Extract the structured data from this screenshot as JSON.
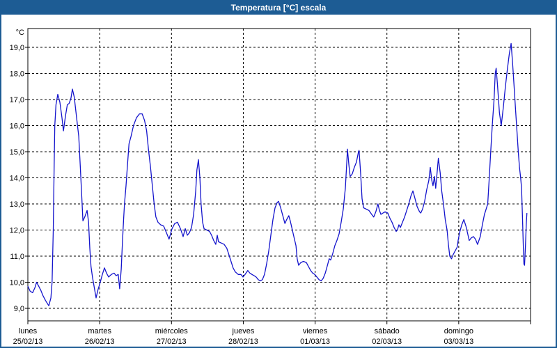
{
  "window": {
    "title": "Temperatura [°C] escala"
  },
  "colors": {
    "title_bar": "#1d5c94",
    "window_border": "#1d5c94",
    "line": "#1414cc",
    "grid": "#000000",
    "background": "#ffffff"
  },
  "chart_data": {
    "type": "line",
    "title": "Temperatura [°C] escala",
    "unit_label": "°C",
    "xlabel": "",
    "ylabel": "°C",
    "ylim": [
      8.5,
      19.7
    ],
    "grid": true,
    "legend_position": "none",
    "x_hours_total": 168,
    "y_ticks": [
      {
        "label": "19,0",
        "value": 19
      },
      {
        "label": "18,0",
        "value": 18
      },
      {
        "label": "17,0",
        "value": 17
      },
      {
        "label": "16,0",
        "value": 16
      },
      {
        "label": "15,0",
        "value": 15
      },
      {
        "label": "14,0",
        "value": 14
      },
      {
        "label": "13,0",
        "value": 13
      },
      {
        "label": "12,0",
        "value": 12
      },
      {
        "label": "11,0",
        "value": 11
      },
      {
        "label": "10,0",
        "value": 10
      },
      {
        "label": "9,0",
        "value": 9
      }
    ],
    "x_days": [
      {
        "name": "lunes",
        "date": "25/02/13"
      },
      {
        "name": "martes",
        "date": "26/02/13"
      },
      {
        "name": "miércoles",
        "date": "27/02/13"
      },
      {
        "name": "jueves",
        "date": "28/02/13"
      },
      {
        "name": "viernes",
        "date": "01/03/13"
      },
      {
        "name": "sábado",
        "date": "02/03/13"
      },
      {
        "name": "domingo",
        "date": "03/03/13"
      }
    ],
    "series": [
      {
        "name": "Temperatura",
        "points": [
          [
            0.0,
            9.85
          ],
          [
            0.8,
            9.65
          ],
          [
            1.6,
            9.6
          ],
          [
            2.4,
            9.8
          ],
          [
            2.9,
            10.0
          ],
          [
            3.6,
            9.85
          ],
          [
            4.3,
            9.7
          ],
          [
            5.0,
            9.5
          ],
          [
            5.9,
            9.3
          ],
          [
            7.0,
            9.1
          ],
          [
            7.7,
            9.4
          ],
          [
            8.1,
            10.0
          ],
          [
            8.5,
            12.0
          ],
          [
            8.8,
            14.5
          ],
          [
            9.0,
            16.0
          ],
          [
            9.4,
            16.8
          ],
          [
            10.0,
            17.2
          ],
          [
            10.7,
            16.9
          ],
          [
            11.4,
            16.3
          ],
          [
            11.9,
            15.8
          ],
          [
            12.6,
            16.4
          ],
          [
            13.2,
            16.8
          ],
          [
            13.8,
            16.85
          ],
          [
            14.4,
            17.05
          ],
          [
            14.9,
            17.4
          ],
          [
            15.5,
            17.1
          ],
          [
            16.1,
            16.5
          ],
          [
            16.6,
            16.0
          ],
          [
            17.0,
            15.6
          ],
          [
            17.5,
            14.5
          ],
          [
            18.0,
            13.3
          ],
          [
            18.4,
            12.35
          ],
          [
            19.0,
            12.5
          ],
          [
            19.8,
            12.75
          ],
          [
            20.3,
            12.3
          ],
          [
            20.7,
            11.3
          ],
          [
            21.1,
            10.6
          ],
          [
            21.6,
            10.2
          ],
          [
            22.2,
            9.8
          ],
          [
            22.8,
            9.4
          ],
          [
            23.4,
            9.7
          ],
          [
            24.2,
            10.0
          ],
          [
            24.9,
            10.3
          ],
          [
            25.6,
            10.55
          ],
          [
            26.3,
            10.35
          ],
          [
            27.0,
            10.2
          ],
          [
            27.9,
            10.3
          ],
          [
            28.8,
            10.35
          ],
          [
            29.5,
            10.25
          ],
          [
            30.2,
            10.3
          ],
          [
            30.7,
            9.75
          ],
          [
            31.2,
            10.5
          ],
          [
            31.6,
            11.5
          ],
          [
            32.0,
            12.4
          ],
          [
            32.3,
            13.0
          ],
          [
            32.8,
            13.7
          ],
          [
            33.3,
            14.5
          ],
          [
            33.8,
            15.3
          ],
          [
            34.5,
            15.6
          ],
          [
            35.3,
            16.0
          ],
          [
            36.3,
            16.3
          ],
          [
            37.3,
            16.45
          ],
          [
            38.2,
            16.45
          ],
          [
            39.0,
            16.2
          ],
          [
            39.7,
            15.8
          ],
          [
            40.3,
            15.1
          ],
          [
            41.0,
            14.4
          ],
          [
            41.6,
            13.7
          ],
          [
            42.2,
            13.0
          ],
          [
            42.8,
            12.5
          ],
          [
            43.5,
            12.3
          ],
          [
            44.4,
            12.2
          ],
          [
            45.4,
            12.15
          ],
          [
            46.3,
            11.9
          ],
          [
            47.2,
            11.65
          ],
          [
            48.2,
            12.05
          ],
          [
            49.1,
            12.25
          ],
          [
            50.0,
            12.3
          ],
          [
            51.0,
            12.05
          ],
          [
            51.9,
            11.75
          ],
          [
            52.6,
            12.05
          ],
          [
            53.3,
            11.8
          ],
          [
            54.0,
            11.9
          ],
          [
            54.7,
            12.1
          ],
          [
            55.4,
            12.6
          ],
          [
            56.1,
            13.5
          ],
          [
            56.5,
            14.3
          ],
          [
            57.0,
            14.7
          ],
          [
            57.5,
            14.0
          ],
          [
            57.9,
            13.0
          ],
          [
            58.4,
            12.3
          ],
          [
            58.9,
            12.05
          ],
          [
            59.8,
            12.0
          ],
          [
            60.7,
            11.95
          ],
          [
            61.4,
            11.8
          ],
          [
            62.1,
            11.6
          ],
          [
            62.8,
            11.45
          ],
          [
            63.3,
            11.8
          ],
          [
            63.7,
            11.55
          ],
          [
            64.7,
            11.5
          ],
          [
            65.6,
            11.45
          ],
          [
            66.5,
            11.3
          ],
          [
            67.2,
            11.05
          ],
          [
            67.9,
            10.8
          ],
          [
            68.6,
            10.55
          ],
          [
            69.3,
            10.4
          ],
          [
            70.3,
            10.3
          ],
          [
            71.2,
            10.3
          ],
          [
            71.9,
            10.2
          ],
          [
            72.6,
            10.3
          ],
          [
            73.5,
            10.45
          ],
          [
            74.2,
            10.35
          ],
          [
            74.9,
            10.3
          ],
          [
            75.6,
            10.25
          ],
          [
            76.3,
            10.2
          ],
          [
            77.0,
            10.1
          ],
          [
            77.7,
            10.05
          ],
          [
            78.4,
            10.1
          ],
          [
            79.1,
            10.3
          ],
          [
            79.8,
            10.7
          ],
          [
            80.5,
            11.2
          ],
          [
            81.2,
            11.8
          ],
          [
            81.9,
            12.4
          ],
          [
            82.6,
            12.85
          ],
          [
            83.3,
            13.05
          ],
          [
            83.8,
            13.1
          ],
          [
            84.5,
            12.85
          ],
          [
            85.2,
            12.55
          ],
          [
            85.9,
            12.25
          ],
          [
            86.5,
            12.4
          ],
          [
            87.2,
            12.55
          ],
          [
            87.7,
            12.35
          ],
          [
            88.4,
            12.0
          ],
          [
            89.1,
            11.65
          ],
          [
            89.6,
            11.4
          ],
          [
            90.0,
            10.9
          ],
          [
            90.5,
            10.65
          ],
          [
            91.2,
            10.75
          ],
          [
            92.1,
            10.8
          ],
          [
            93.1,
            10.75
          ],
          [
            93.8,
            10.6
          ],
          [
            94.5,
            10.45
          ],
          [
            95.2,
            10.35
          ],
          [
            95.9,
            10.3
          ],
          [
            96.6,
            10.2
          ],
          [
            97.3,
            10.1
          ],
          [
            98.0,
            10.05
          ],
          [
            98.7,
            10.15
          ],
          [
            99.4,
            10.35
          ],
          [
            100.0,
            10.6
          ],
          [
            100.7,
            10.9
          ],
          [
            101.2,
            10.85
          ],
          [
            101.9,
            11.1
          ],
          [
            102.6,
            11.4
          ],
          [
            103.3,
            11.6
          ],
          [
            104.0,
            11.85
          ],
          [
            104.7,
            12.3
          ],
          [
            105.4,
            12.8
          ],
          [
            106.1,
            13.6
          ],
          [
            106.6,
            14.6
          ],
          [
            106.8,
            15.1
          ],
          [
            107.3,
            14.5
          ],
          [
            107.7,
            14.05
          ],
          [
            108.4,
            14.15
          ],
          [
            109.1,
            14.4
          ],
          [
            109.8,
            14.6
          ],
          [
            110.5,
            15.0
          ],
          [
            110.7,
            15.05
          ],
          [
            111.2,
            14.2
          ],
          [
            111.7,
            13.2
          ],
          [
            112.2,
            12.85
          ],
          [
            113.1,
            12.8
          ],
          [
            114.0,
            12.75
          ],
          [
            114.9,
            12.6
          ],
          [
            115.6,
            12.5
          ],
          [
            116.3,
            12.7
          ],
          [
            117.0,
            13.0
          ],
          [
            117.5,
            12.75
          ],
          [
            118.0,
            12.6
          ],
          [
            118.7,
            12.65
          ],
          [
            119.4,
            12.7
          ],
          [
            120.3,
            12.65
          ],
          [
            121.0,
            12.45
          ],
          [
            121.7,
            12.3
          ],
          [
            122.4,
            12.1
          ],
          [
            123.1,
            11.95
          ],
          [
            123.5,
            12.0
          ],
          [
            124.0,
            12.2
          ],
          [
            124.5,
            12.1
          ],
          [
            125.2,
            12.3
          ],
          [
            125.9,
            12.5
          ],
          [
            126.6,
            12.75
          ],
          [
            127.3,
            13.0
          ],
          [
            128.0,
            13.3
          ],
          [
            128.7,
            13.5
          ],
          [
            129.4,
            13.2
          ],
          [
            130.1,
            12.9
          ],
          [
            130.9,
            12.7
          ],
          [
            131.3,
            12.65
          ],
          [
            131.9,
            12.8
          ],
          [
            132.6,
            13.1
          ],
          [
            133.3,
            13.55
          ],
          [
            134.0,
            13.9
          ],
          [
            134.5,
            14.4
          ],
          [
            135.0,
            13.9
          ],
          [
            135.4,
            13.7
          ],
          [
            135.9,
            14.05
          ],
          [
            136.3,
            13.6
          ],
          [
            137.2,
            14.75
          ],
          [
            137.8,
            14.2
          ],
          [
            138.3,
            13.5
          ],
          [
            138.9,
            13.0
          ],
          [
            139.5,
            12.4
          ],
          [
            140.1,
            12.0
          ],
          [
            140.6,
            11.4
          ],
          [
            141.0,
            11.0
          ],
          [
            141.6,
            10.9
          ],
          [
            142.1,
            11.05
          ],
          [
            142.8,
            11.2
          ],
          [
            143.5,
            11.35
          ],
          [
            143.8,
            11.6
          ],
          [
            144.3,
            11.9
          ],
          [
            145.0,
            12.2
          ],
          [
            145.7,
            12.4
          ],
          [
            146.4,
            12.15
          ],
          [
            147.0,
            11.85
          ],
          [
            147.5,
            11.6
          ],
          [
            148.2,
            11.7
          ],
          [
            148.9,
            11.75
          ],
          [
            149.6,
            11.65
          ],
          [
            150.3,
            11.45
          ],
          [
            151.2,
            11.75
          ],
          [
            151.9,
            12.2
          ],
          [
            152.6,
            12.6
          ],
          [
            153.3,
            12.85
          ],
          [
            153.7,
            13.0
          ],
          [
            154.2,
            14.0
          ],
          [
            154.7,
            15.0
          ],
          [
            155.2,
            16.0
          ],
          [
            155.8,
            17.0
          ],
          [
            156.2,
            18.0
          ],
          [
            156.5,
            18.2
          ],
          [
            157.0,
            17.5
          ],
          [
            157.6,
            16.5
          ],
          [
            158.2,
            16.0
          ],
          [
            158.9,
            16.7
          ],
          [
            159.6,
            17.5
          ],
          [
            160.3,
            18.2
          ],
          [
            160.9,
            18.75
          ],
          [
            161.5,
            19.15
          ],
          [
            162.0,
            18.4
          ],
          [
            162.5,
            17.5
          ],
          [
            163.0,
            16.6
          ],
          [
            163.5,
            15.7
          ],
          [
            163.9,
            15.0
          ],
          [
            164.3,
            14.4
          ],
          [
            164.7,
            14.0
          ],
          [
            165.0,
            13.6
          ],
          [
            165.3,
            12.5
          ],
          [
            165.6,
            11.3
          ],
          [
            165.8,
            10.7
          ],
          [
            166.0,
            10.65
          ],
          [
            166.3,
            11.4
          ],
          [
            166.6,
            12.3
          ],
          [
            166.8,
            12.65
          ]
        ]
      }
    ]
  }
}
